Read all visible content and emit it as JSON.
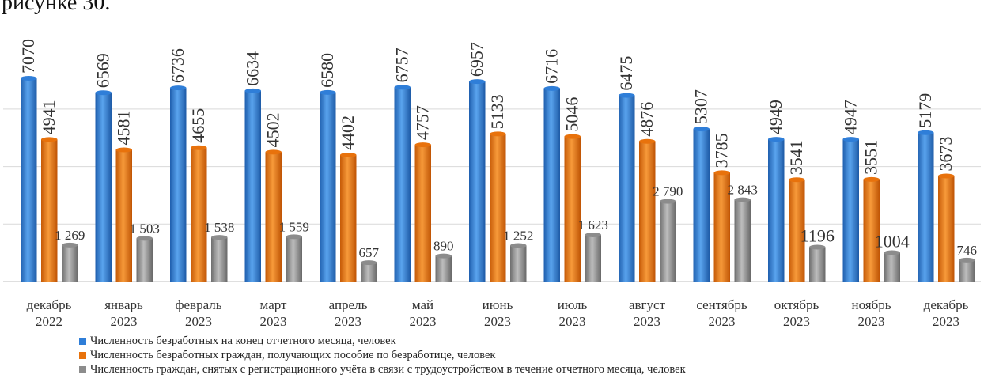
{
  "caption": "рисунке 30.",
  "chart_data": {
    "type": "bar",
    "title": "",
    "xlabel": "",
    "ylabel": "",
    "ylim": [
      0,
      7000
    ],
    "grid": true,
    "legend_position": "bottom",
    "categories": [
      [
        "декабрь",
        "2022"
      ],
      [
        "январь",
        "2023"
      ],
      [
        "февраль",
        "2023"
      ],
      [
        "март",
        "2023"
      ],
      [
        "апрель",
        "2023"
      ],
      [
        "май",
        "2023"
      ],
      [
        "июнь",
        "2023"
      ],
      [
        "июль",
        "2023"
      ],
      [
        "август",
        "2023"
      ],
      [
        "сентябрь",
        "2023"
      ],
      [
        "октябрь",
        "2023"
      ],
      [
        "ноябрь",
        "2023"
      ],
      [
        "декабрь",
        "2023"
      ]
    ],
    "series": [
      {
        "name": "Численность безработных на конец отчетного месяца, человек",
        "color": "#2f7ed8",
        "values": [
          7070,
          6569,
          6736,
          6634,
          6580,
          6757,
          6957,
          6716,
          6475,
          5307,
          4949,
          4947,
          5179
        ],
        "labels": [
          "7070",
          "6569",
          "6736",
          "6634",
          "6580",
          "6757",
          "6957",
          "6716",
          "6475",
          "5307",
          "4949",
          "4947",
          "5179"
        ]
      },
      {
        "name": "Численность безработных граждан,  получающих пособие по безработице, человек",
        "color": "#e8720c",
        "values": [
          4941,
          4581,
          4655,
          4502,
          4402,
          4757,
          5133,
          5046,
          4876,
          3785,
          3541,
          3551,
          3673
        ],
        "labels": [
          "4941",
          "4581",
          "4655",
          "4502",
          "4402",
          "4757",
          "5133",
          "5046",
          "4876",
          "3785",
          "3541",
          "3551",
          "3673"
        ]
      },
      {
        "name": "Численность граждан,  снятых с регистрационного  учёта  в связи с трудоустройством в течение отчетного месяца, человек",
        "color": "#8c8c8c",
        "values": [
          1269,
          1503,
          1538,
          1559,
          657,
          890,
          1252,
          1623,
          2790,
          2843,
          1196,
          1004,
          746
        ],
        "labels": [
          "1 269",
          "1 503",
          "1 538",
          "1 559",
          "657",
          "890",
          "1 252",
          "1 623",
          "2 790",
          "2 843",
          "1196",
          "1004",
          "746"
        ]
      }
    ]
  }
}
